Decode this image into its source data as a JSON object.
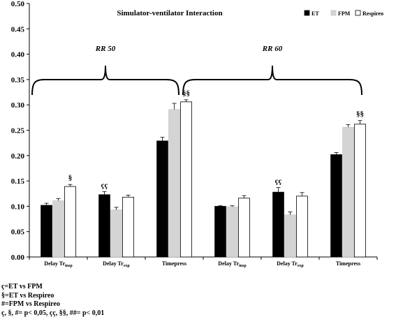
{
  "chart_data": {
    "type": "bar",
    "title": "Simulator-ventilator  Interaction",
    "ylim": [
      0,
      0.5
    ],
    "yticks": [
      "0.00",
      "0.05",
      "0.10",
      "0.15",
      "0.20",
      "0.25",
      "0.30",
      "0.35",
      "0.40",
      "0.45",
      "0.50"
    ],
    "grid": false,
    "legend_position": "top-right",
    "series": [
      {
        "name": "ET",
        "color": "#000000",
        "values": [
          0.102,
          0.123,
          0.229,
          0.1,
          0.128,
          0.202
        ],
        "errors": [
          0.004,
          0.006,
          0.007,
          0.001,
          0.009,
          0.004
        ]
      },
      {
        "name": "FPM",
        "color": "#d4d4d4",
        "values": [
          0.111,
          0.093,
          0.291,
          0.099,
          0.083,
          0.256
        ],
        "errors": [
          0.004,
          0.005,
          0.012,
          0.002,
          0.006,
          0.005
        ]
      },
      {
        "name": "Respireo",
        "color": "#ffffff",
        "values": [
          0.139,
          0.118,
          0.306,
          0.116,
          0.12,
          0.262
        ],
        "errors": [
          0.004,
          0.004,
          0.004,
          0.005,
          0.007,
          0.007
        ]
      }
    ],
    "groups": [
      {
        "category": "Delay Tr",
        "sub": "insp"
      },
      {
        "category": "Delay Tr",
        "sub": "exp"
      },
      {
        "category": "Timepress",
        "sub": ""
      },
      {
        "category": "Delay Tr",
        "sub": "insp"
      },
      {
        "category": "Delay Tr",
        "sub": "exp"
      },
      {
        "category": "Timepress",
        "sub": ""
      }
    ],
    "annotations": [
      {
        "group": 0,
        "series": 2,
        "text": "§"
      },
      {
        "group": 1,
        "series": 0,
        "text": "çç"
      },
      {
        "group": 2,
        "series": 2,
        "text": "§§"
      },
      {
        "group": 4,
        "series": 0,
        "text": "çç"
      },
      {
        "group": 5,
        "series": 2,
        "text": "§§"
      }
    ],
    "bracket_labels": [
      "RR 50",
      "RR 60"
    ]
  },
  "footnotes": [
    "ç=ET vs FPM",
    "§=ET vs Respireo",
    "#=FPM vs Respireo",
    "ç, §, #= p< 0,05, çç, §§, ##= p< 0,01"
  ]
}
